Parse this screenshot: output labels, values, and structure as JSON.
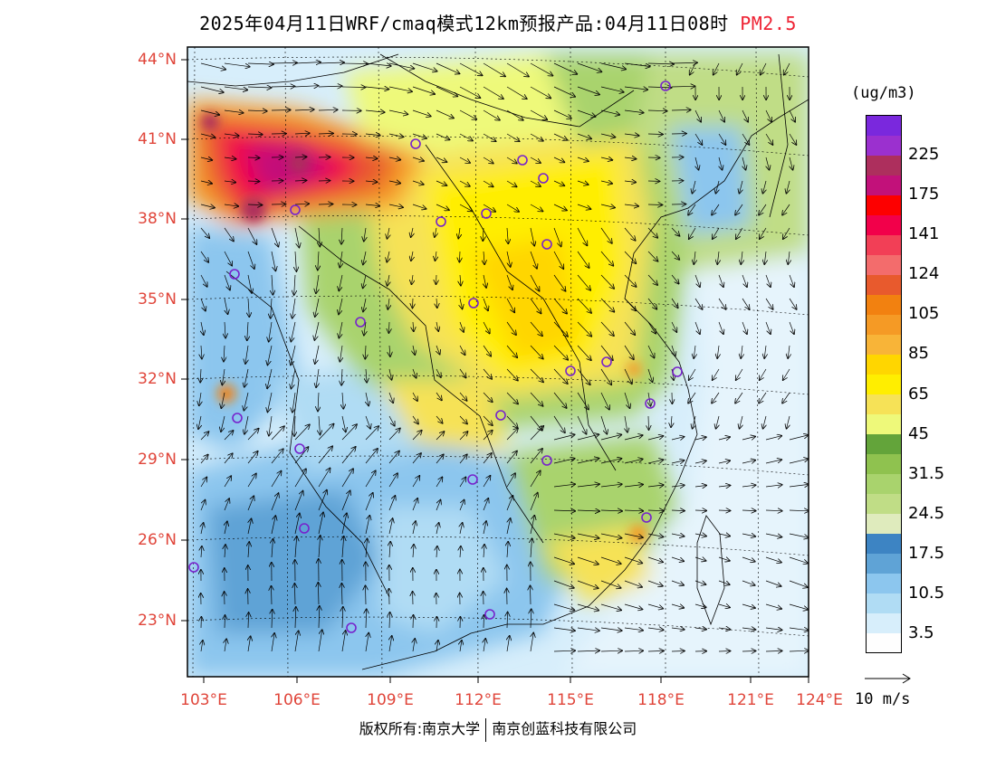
{
  "title": {
    "main": "2025年04月11日WRF/cmaq模式12km预报产品:04月11日08时",
    "pollutant": "PM2.5"
  },
  "colorbar": {
    "unit": "(ug/m3)",
    "bins": [
      {
        "color": "#fefefe"
      },
      {
        "color": "#d7eefb"
      },
      {
        "color": "#b0dcf4"
      },
      {
        "color": "#8cc6ee"
      },
      {
        "color": "#5fa3d6"
      },
      {
        "color": "#3d84c3"
      },
      {
        "color": "#dfebbd"
      },
      {
        "color": "#c0dd86"
      },
      {
        "color": "#a9d36d"
      },
      {
        "color": "#8fc24f"
      },
      {
        "color": "#63a43a"
      },
      {
        "color": "#eef97a"
      },
      {
        "color": "#f6e257"
      },
      {
        "color": "#ffee00"
      },
      {
        "color": "#ffd600"
      },
      {
        "color": "#f8b438"
      },
      {
        "color": "#f59a25"
      },
      {
        "color": "#f28110"
      },
      {
        "color": "#e85a2d"
      },
      {
        "color": "#f36c6c"
      },
      {
        "color": "#f23f56"
      },
      {
        "color": "#f2004a"
      },
      {
        "color": "#fd0000"
      },
      {
        "color": "#c2117a"
      },
      {
        "color": "#ad2f5d"
      },
      {
        "color": "#9b30cf"
      },
      {
        "color": "#7a28dd"
      }
    ],
    "labels": [
      "3.5",
      "10.5",
      "17.5",
      "24.5",
      "31.5",
      "45",
      "65",
      "85",
      "105",
      "124",
      "141",
      "175",
      "225"
    ]
  },
  "axes": {
    "lat_labels": [
      "44°N",
      "41°N",
      "38°N",
      "35°N",
      "32°N",
      "29°N",
      "26°N",
      "23°N"
    ],
    "lon_labels": [
      "103°E",
      "106°E",
      "109°E",
      "112°E",
      "115°E",
      "118°E",
      "121°E",
      "124°E"
    ]
  },
  "wind_reference": {
    "label": "10 m/s"
  },
  "copyright": {
    "left": "版权所有:南京大学",
    "right": "南京创蓝科技有限公司"
  },
  "colors": {
    "label_red": "#e0453a",
    "station_circle": "#7722cc"
  }
}
